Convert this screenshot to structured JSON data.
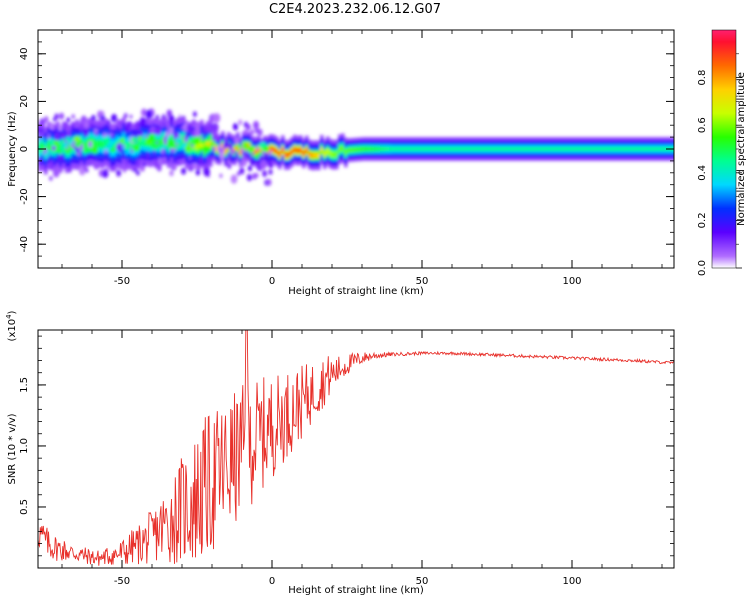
{
  "title": "C2E4.2023.232.06.12.G07",
  "colorbar": {
    "label": "Normalized spectral amplitude",
    "ticks": [
      "0.0",
      "0.2",
      "0.4",
      "0.6",
      "0.8"
    ],
    "tick_values": [
      0.0,
      0.2,
      0.4,
      0.6,
      0.8
    ]
  },
  "chart_data": [
    {
      "type": "heatmap",
      "title": "",
      "xlabel": "Height of straight line (km)",
      "ylabel": "Frequency (Hz)",
      "xlim": [
        -78,
        134
      ],
      "ylim": [
        -50,
        50
      ],
      "xticks": [
        "-50",
        "0",
        "50",
        "100"
      ],
      "xtick_values": [
        -50,
        0,
        50,
        100
      ],
      "yticks": [
        "40",
        "20",
        "0",
        "-20",
        "-40"
      ],
      "ytick_values": [
        40,
        20,
        0,
        -20,
        -40
      ],
      "colorscale": "rainbow",
      "zlim": [
        0,
        1
      ],
      "ridge": {
        "description_values_x_km": [
          -78,
          -70,
          -60,
          -50,
          -40,
          -30,
          -20,
          -10,
          0,
          10,
          20,
          30,
          40,
          60,
          80,
          100,
          120,
          134
        ],
        "center_frequency_hz": [
          0,
          1,
          2,
          2,
          2.5,
          3,
          1,
          0,
          -1.5,
          -1.5,
          -1,
          0,
          0,
          0,
          0,
          0,
          0,
          0
        ],
        "peak_amplitude": [
          0.5,
          0.55,
          0.5,
          0.45,
          0.5,
          0.55,
          0.75,
          0.8,
          0.85,
          0.85,
          0.6,
          0.55,
          0.45,
          0.45,
          0.45,
          0.45,
          0.45,
          0.45
        ]
      }
    },
    {
      "type": "line",
      "title": "",
      "xlabel": "Height of straight line (km)",
      "ylabel": "SNR (10 * v/v)",
      "y_multiplier_label": "(x10",
      "y_multiplier_exp": "4",
      "y_multiplier_close": ")",
      "xlim": [
        -78,
        134
      ],
      "ylim": [
        0,
        1.95
      ],
      "xticks": [
        "-50",
        "0",
        "50",
        "100"
      ],
      "xtick_values": [
        -50,
        0,
        50,
        100
      ],
      "yticks": [
        "0.5",
        "1.0",
        "1.5"
      ],
      "ytick_values": [
        0.5,
        1.0,
        1.5
      ],
      "series": [
        {
          "color": "#e8312b",
          "x": [
            -78,
            -74,
            -70,
            -66,
            -62,
            -58,
            -54,
            -50,
            -46,
            -42,
            -38,
            -34,
            -30,
            -26,
            -22,
            -18,
            -14,
            -10,
            -6,
            -2,
            2,
            6,
            10,
            14,
            18,
            22,
            26,
            30,
            34,
            40,
            50,
            60,
            70,
            80,
            90,
            100,
            110,
            120,
            134
          ],
          "values": [
            0.3,
            0.18,
            0.15,
            0.12,
            0.1,
            0.08,
            0.1,
            0.12,
            0.18,
            0.22,
            0.3,
            0.38,
            0.48,
            0.55,
            0.65,
            0.75,
            0.85,
            0.95,
            1.05,
            1.12,
            1.2,
            1.28,
            1.36,
            1.45,
            1.55,
            1.62,
            1.68,
            1.72,
            1.74,
            1.75,
            1.76,
            1.76,
            1.75,
            1.74,
            1.73,
            1.72,
            1.71,
            1.7,
            1.68
          ],
          "noise_amplitude": [
            0.15,
            0.12,
            0.1,
            0.08,
            0.07,
            0.07,
            0.08,
            0.12,
            0.15,
            0.2,
            0.25,
            0.35,
            0.45,
            0.55,
            0.6,
            0.6,
            0.55,
            0.55,
            0.5,
            0.45,
            0.4,
            0.35,
            0.3,
            0.25,
            0.2,
            0.12,
            0.08,
            0.05,
            0.03,
            0.015,
            0.012,
            0.012,
            0.012,
            0.012,
            0.012,
            0.012,
            0.012,
            0.012,
            0.012
          ]
        }
      ]
    }
  ]
}
